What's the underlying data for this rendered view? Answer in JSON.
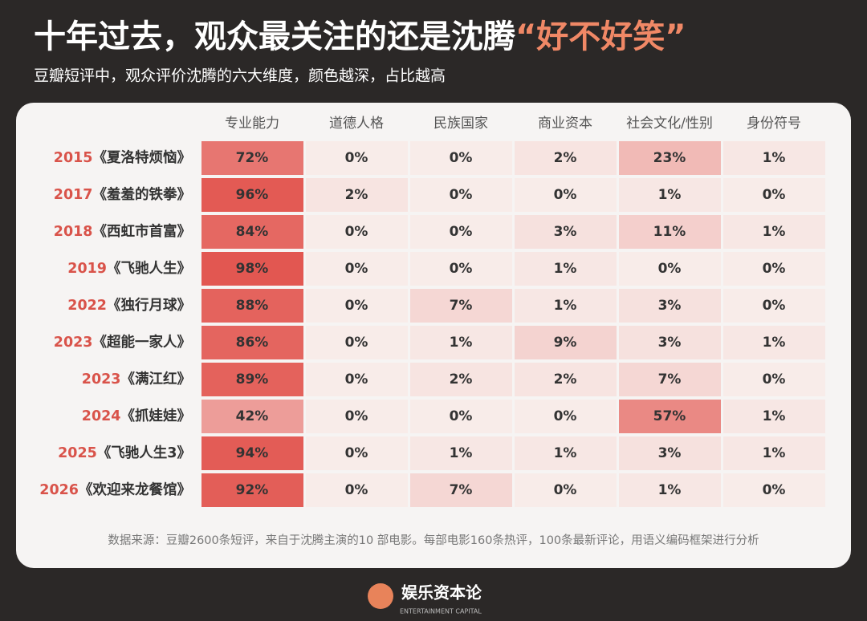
{
  "chart_data": {
    "type": "heatmap",
    "title": "十年过去，观众最关注的还是沈腾",
    "title_highlight": "“好不好笑”",
    "subtitle": "豆瓣短评中，观众评价沈腾的六大维度，颜色越深，占比越高",
    "columns": [
      "专业能力",
      "道德人格",
      "民族国家",
      "商业资本",
      "社会文化/性别",
      "身份符号"
    ],
    "rows": [
      {
        "year": "2015",
        "film": "《夏洛特烦恼》"
      },
      {
        "year": "2017",
        "film": "《羞羞的铁拳》"
      },
      {
        "year": "2018",
        "film": "《西虹市首富》"
      },
      {
        "year": "2019",
        "film": "《飞驰人生》"
      },
      {
        "year": "2022",
        "film": "《独行月球》"
      },
      {
        "year": "2023",
        "film": "《超能一家人》"
      },
      {
        "year": "2023",
        "film": "《满江红》"
      },
      {
        "year": "2024",
        "film": "《抓娃娃》"
      },
      {
        "year": "2025",
        "film": "《飞驰人生3》"
      },
      {
        "year": "2026",
        "film": "《欢迎来龙餐馆》"
      }
    ],
    "values": [
      [
        72,
        0,
        0,
        2,
        23,
        1
      ],
      [
        96,
        2,
        0,
        0,
        1,
        0
      ],
      [
        84,
        0,
        0,
        3,
        11,
        1
      ],
      [
        98,
        0,
        0,
        1,
        0,
        0
      ],
      [
        88,
        0,
        7,
        1,
        3,
        0
      ],
      [
        86,
        0,
        1,
        9,
        3,
        1
      ],
      [
        89,
        0,
        2,
        2,
        7,
        0
      ],
      [
        42,
        0,
        0,
        0,
        57,
        1
      ],
      [
        94,
        0,
        1,
        1,
        3,
        1
      ],
      [
        92,
        0,
        7,
        0,
        1,
        0
      ]
    ],
    "value_labels": [
      [
        "72%",
        "0%",
        "0%",
        "2%",
        "23%",
        "1%"
      ],
      [
        "96%",
        "2%",
        "0%",
        "0%",
        "1%",
        "0%"
      ],
      [
        "84%",
        "0%",
        "0%",
        "3%",
        "11%",
        "1%"
      ],
      [
        "98%",
        "0%",
        "0%",
        "1%",
        "0%",
        "0%"
      ],
      [
        "88%",
        "0%",
        "7%",
        "1%",
        "3%",
        "0%"
      ],
      [
        "86%",
        "0%",
        "1%",
        "9%",
        "3%",
        "1%"
      ],
      [
        "89%",
        "0%",
        "2%",
        "2%",
        "7%",
        "0%"
      ],
      [
        "42%",
        "0%",
        "0%",
        "0%",
        "57%",
        "1%"
      ],
      [
        "94%",
        "0%",
        "1%",
        "1%",
        "3%",
        "1%"
      ],
      [
        "92%",
        "0%",
        "7%",
        "0%",
        "1%",
        "0%"
      ]
    ],
    "color_scale": [
      "#f8ece9",
      "#e2554f"
    ],
    "source": "数据来源：豆瓣2600条短评，来自于沈腾主演的10 部电影。每部电影160条热评，100条最新评论，用语义编码框架进行分析",
    "logo": "娱乐资本论",
    "logo_subtitle": "ENTERTAINMENT CAPITAL"
  }
}
